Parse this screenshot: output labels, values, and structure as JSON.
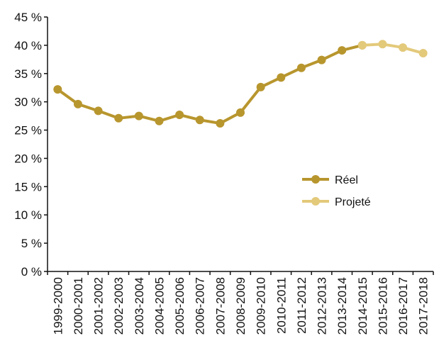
{
  "chart_data": {
    "type": "line",
    "title": "",
    "xlabel": "",
    "ylabel": "",
    "categories": [
      "1999-2000",
      "2000-2001",
      "2001-2002",
      "2002-2003",
      "2003-2004",
      "2004-2005",
      "2005-2006",
      "2006-2007",
      "2007-2008",
      "2008-2009",
      "2009-2010",
      "2010-2011",
      "2011-2012",
      "2012-2013",
      "2013-2014",
      "2014-2015",
      "2015-2016",
      "2016-2017",
      "2017-2018"
    ],
    "ylim": [
      0,
      45
    ],
    "yticks": [
      "0 %",
      "5 %",
      "10 %",
      "15 %",
      "20 %",
      "25 %",
      "30 %",
      "35 %",
      "40 %",
      "45 %"
    ],
    "yticks_values": [
      0,
      5,
      10,
      15,
      20,
      25,
      30,
      35,
      40,
      45
    ],
    "grid": false,
    "legend_position": "center-right",
    "series": [
      {
        "name": "Réel",
        "color": "#B8962E",
        "values": [
          32.2,
          29.6,
          28.4,
          27.1,
          27.5,
          26.6,
          27.7,
          26.8,
          26.2,
          28.1,
          32.6,
          34.3,
          36.0,
          37.4,
          39.1,
          40.0,
          null,
          null,
          null
        ]
      },
      {
        "name": "Projeté",
        "color": "#E3C97A",
        "values": [
          null,
          null,
          null,
          null,
          null,
          null,
          null,
          null,
          null,
          null,
          null,
          null,
          null,
          null,
          null,
          40.0,
          40.2,
          39.6,
          38.6
        ]
      }
    ]
  }
}
